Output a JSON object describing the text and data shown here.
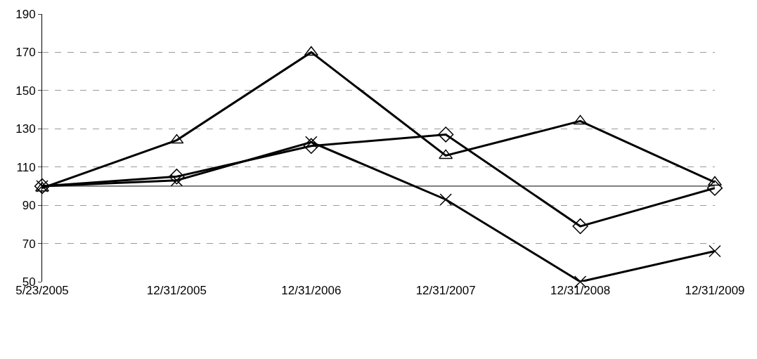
{
  "chart_data": {
    "type": "line",
    "categories": [
      "5/23/2005",
      "12/31/2005",
      "12/31/2006",
      "12/31/2007",
      "12/31/2008",
      "12/31/2009"
    ],
    "series": [
      {
        "color": "#000000",
        "marker": "diamond",
        "values": [
          100,
          105,
          121,
          127,
          79,
          99
        ]
      },
      {
        "color": "#000000",
        "marker": "cross",
        "values": [
          100,
          103,
          123,
          93,
          50,
          66
        ]
      },
      {
        "color": "#000000",
        "marker": "triangle",
        "values": [
          99,
          124,
          170,
          116,
          134,
          102
        ]
      }
    ],
    "ylim": [
      50,
      190
    ],
    "yticks": [
      50,
      70,
      90,
      110,
      130,
      150,
      170,
      190
    ],
    "grid": "y",
    "ref_lines": [
      {
        "axis": "y",
        "value": 100,
        "color": "#000000"
      }
    ]
  }
}
